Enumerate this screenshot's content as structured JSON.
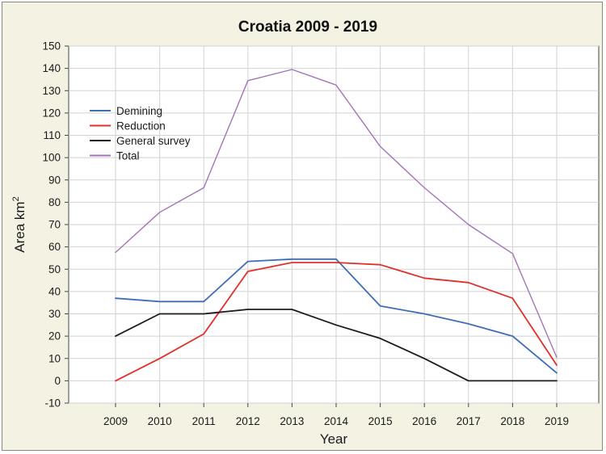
{
  "chart_data": {
    "type": "line",
    "title": "Croatia 2009 - 2019",
    "xlabel": "Year",
    "ylabel_main": "Area km",
    "ylabel_sup": "2",
    "x": [
      "2009",
      "2010",
      "2011",
      "2012",
      "2013",
      "2014",
      "2015",
      "2016",
      "2017",
      "2018",
      "2019"
    ],
    "ylim": [
      -10,
      150
    ],
    "yticks": [
      "-10",
      "0",
      "10",
      "20",
      "30",
      "40",
      "50",
      "60",
      "70",
      "80",
      "90",
      "100",
      "110",
      "120",
      "130",
      "140",
      "150"
    ],
    "grid": true,
    "legend_position": "top-left",
    "series": [
      {
        "name": "Demining",
        "color": "#3f6eb5",
        "values": [
          37,
          35.5,
          35.5,
          53.5,
          54.5,
          54.5,
          33.5,
          30,
          25.5,
          20,
          3.5
        ]
      },
      {
        "name": "Reduction",
        "color": "#e0302a",
        "values": [
          0,
          10,
          21,
          49,
          53,
          53,
          52,
          46,
          44,
          37,
          7
        ]
      },
      {
        "name": "General survey",
        "color": "#1c1c1c",
        "values": [
          20,
          30,
          30,
          32,
          32,
          25,
          19,
          10,
          0,
          0,
          0
        ]
      },
      {
        "name": "Total",
        "color": "#a374b8",
        "values": [
          57.5,
          75.5,
          86.5,
          134.5,
          139.5,
          132.5,
          105,
          86.5,
          70,
          57,
          10.5
        ]
      }
    ]
  }
}
